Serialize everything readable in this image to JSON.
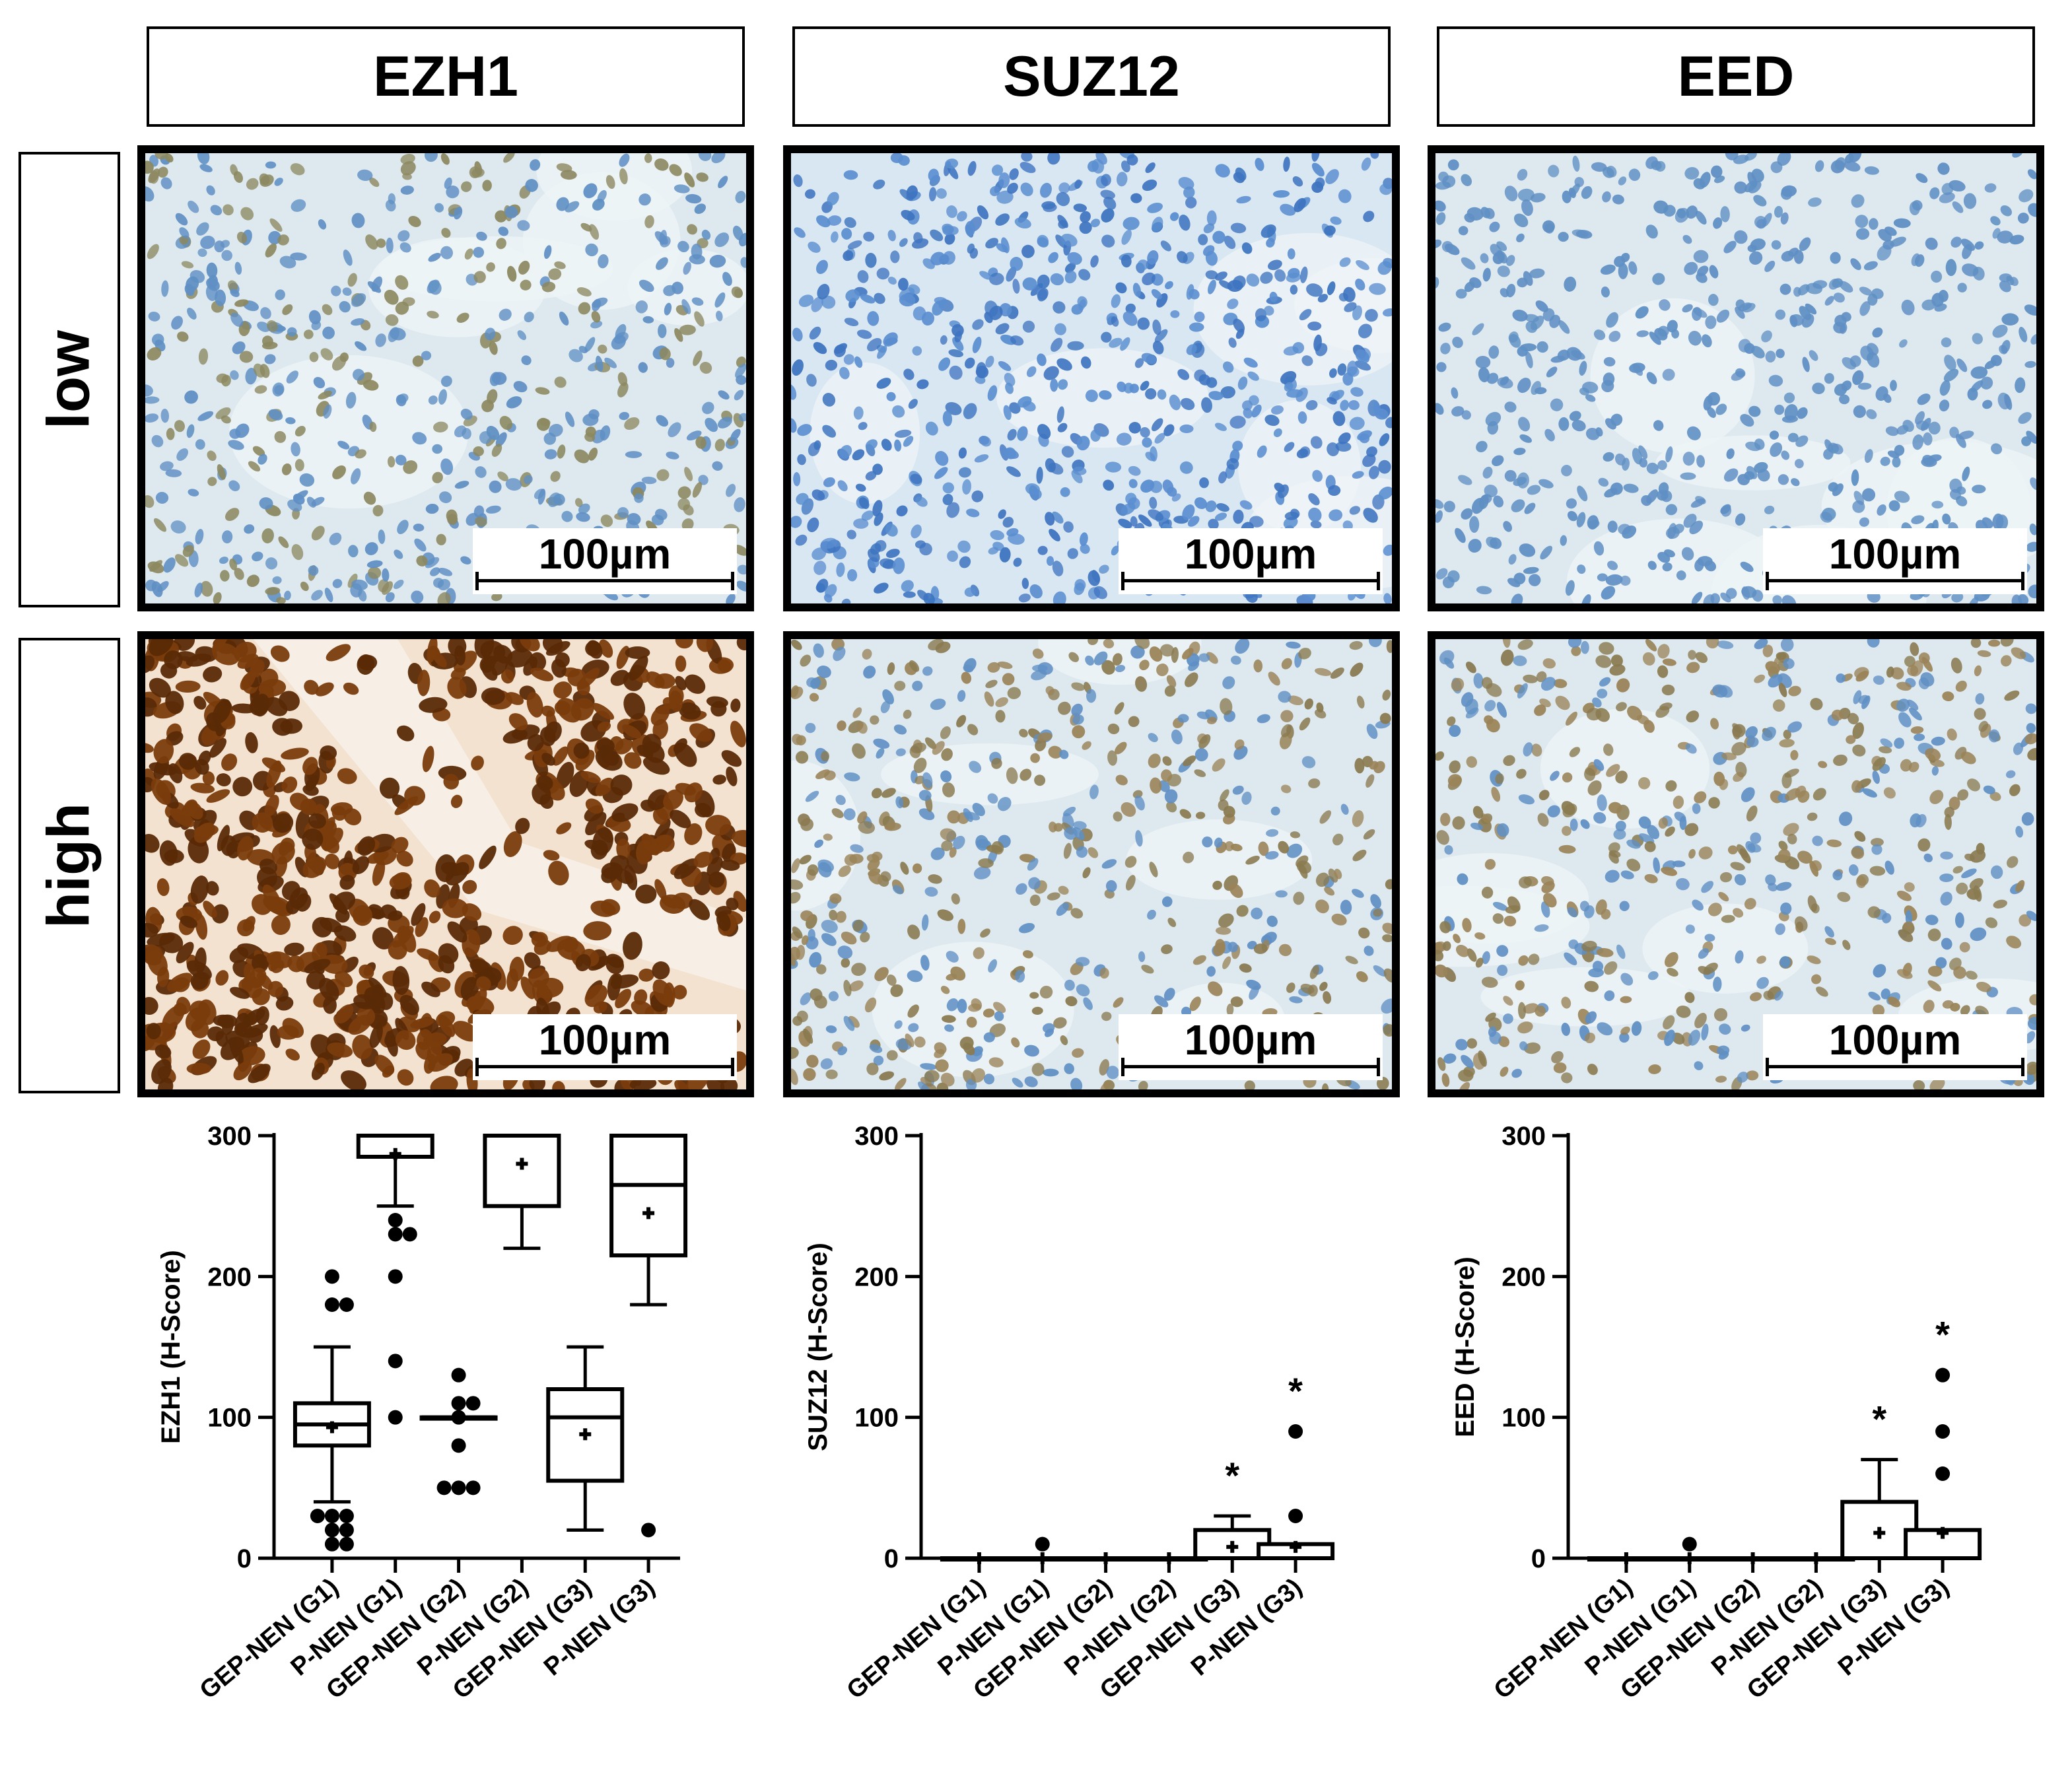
{
  "columns": [
    "EZH1",
    "SUZ12",
    "EED"
  ],
  "rows": [
    "low",
    "high"
  ],
  "scale_bar_label": "100µm",
  "stain_colors": {
    "hematoxylin_bg": "#dde9ef",
    "hematoxylin_nucleus": "#5f8fc4",
    "dab_brown": "#7a3c0c",
    "dab_light": "#9a7a4a"
  },
  "chart_data": [
    {
      "type": "box",
      "ylabel": "EZH1 (H-Score)",
      "ylim": [
        0,
        300
      ],
      "yticks": [
        "0",
        "100",
        "200",
        "300"
      ],
      "categories": [
        "GEP-NEN (G1)",
        "P-NEN (G1)",
        "GEP-NEN (G2)",
        "P-NEN (G2)",
        "GEP-NEN (G3)",
        "P-NEN (G3)"
      ],
      "boxes": [
        {
          "q1": 80,
          "median": 95,
          "q3": 110,
          "mean": 93,
          "lower_whisker": 40,
          "upper_whisker": 150,
          "outliers": [
            10,
            10,
            20,
            20,
            30,
            30,
            30,
            180,
            180,
            200
          ]
        },
        {
          "q1": 285,
          "median": 285,
          "q3": 300,
          "mean": 287,
          "lower_whisker": 250,
          "upper_whisker": 300,
          "outliers": [
            100,
            140,
            200,
            230,
            230,
            240
          ]
        },
        {
          "q1": 100,
          "median": 100,
          "q3": 100,
          "mean": 100,
          "lower_whisker": 100,
          "upper_whisker": 100,
          "outliers": [
            50,
            50,
            50,
            80,
            100,
            110,
            110,
            130
          ]
        },
        {
          "q1": 250,
          "median": 300,
          "q3": 300,
          "mean": 280,
          "lower_whisker": 220,
          "upper_whisker": 300,
          "outliers": []
        },
        {
          "q1": 55,
          "median": 100,
          "q3": 120,
          "mean": 88,
          "lower_whisker": 20,
          "upper_whisker": 150,
          "outliers": []
        },
        {
          "q1": 215,
          "median": 265,
          "q3": 300,
          "mean": 245,
          "lower_whisker": 180,
          "upper_whisker": 300,
          "outliers": [
            20
          ]
        }
      ],
      "annotations": []
    },
    {
      "type": "box",
      "ylabel": "SUZ12 (H-Score)",
      "ylim": [
        0,
        300
      ],
      "yticks": [
        "0",
        "100",
        "200",
        "300"
      ],
      "categories": [
        "GEP-NEN (G1)",
        "P-NEN (G1)",
        "GEP-NEN (G2)",
        "P-NEN (G2)",
        "GEP-NEN (G3)",
        "P-NEN (G3)"
      ],
      "boxes": [
        {
          "q1": 0,
          "median": 0,
          "q3": 0,
          "mean": 0,
          "lower_whisker": 0,
          "upper_whisker": 0,
          "outliers": []
        },
        {
          "q1": 0,
          "median": 0,
          "q3": 0,
          "mean": 0,
          "lower_whisker": 0,
          "upper_whisker": 0,
          "outliers": [
            10
          ]
        },
        {
          "q1": 0,
          "median": 0,
          "q3": 0,
          "mean": 0,
          "lower_whisker": 0,
          "upper_whisker": 0,
          "outliers": []
        },
        {
          "q1": 0,
          "median": 0,
          "q3": 0,
          "mean": 0,
          "lower_whisker": 0,
          "upper_whisker": 0,
          "outliers": []
        },
        {
          "q1": 0,
          "median": 0,
          "q3": 20,
          "mean": 8,
          "lower_whisker": 0,
          "upper_whisker": 30,
          "outliers": []
        },
        {
          "q1": 0,
          "median": 0,
          "q3": 10,
          "mean": 8,
          "lower_whisker": 0,
          "upper_whisker": 10,
          "outliers": [
            30,
            90
          ]
        }
      ],
      "annotations": [
        {
          "category": "GEP-NEN (G3)",
          "text": "*"
        },
        {
          "category": "P-NEN (G3)",
          "text": "*"
        }
      ]
    },
    {
      "type": "box",
      "ylabel": "EED (H-Score)",
      "ylim": [
        0,
        300
      ],
      "yticks": [
        "0",
        "100",
        "200",
        "300"
      ],
      "categories": [
        "GEP-NEN (G1)",
        "P-NEN (G1)",
        "GEP-NEN (G2)",
        "P-NEN (G2)",
        "GEP-NEN (G3)",
        "P-NEN (G3)"
      ],
      "boxes": [
        {
          "q1": 0,
          "median": 0,
          "q3": 0,
          "mean": 0,
          "lower_whisker": 0,
          "upper_whisker": 0,
          "outliers": []
        },
        {
          "q1": 0,
          "median": 0,
          "q3": 0,
          "mean": 0,
          "lower_whisker": 0,
          "upper_whisker": 0,
          "outliers": [
            10
          ]
        },
        {
          "q1": 0,
          "median": 0,
          "q3": 0,
          "mean": 0,
          "lower_whisker": 0,
          "upper_whisker": 0,
          "outliers": []
        },
        {
          "q1": 0,
          "median": 0,
          "q3": 0,
          "mean": 0,
          "lower_whisker": 0,
          "upper_whisker": 0,
          "outliers": []
        },
        {
          "q1": 0,
          "median": 0,
          "q3": 40,
          "mean": 18,
          "lower_whisker": 0,
          "upper_whisker": 70,
          "outliers": []
        },
        {
          "q1": 0,
          "median": 0,
          "q3": 20,
          "mean": 18,
          "lower_whisker": 0,
          "upper_whisker": 20,
          "outliers": [
            60,
            90,
            130
          ]
        }
      ],
      "annotations": [
        {
          "category": "GEP-NEN (G3)",
          "text": "*"
        },
        {
          "category": "P-NEN (G3)",
          "text": "*"
        }
      ]
    }
  ]
}
